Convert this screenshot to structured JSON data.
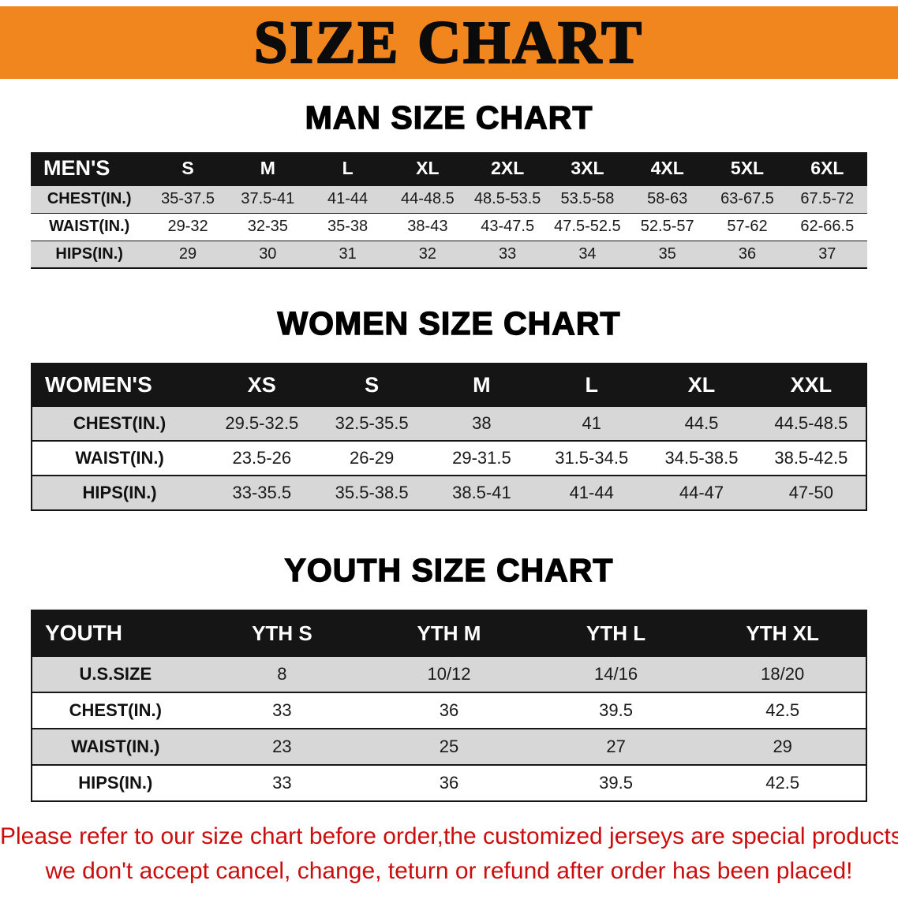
{
  "banner": {
    "title": "SIZE CHART"
  },
  "sections": [
    {
      "heading": "MAN SIZE CHART",
      "table": {
        "name": "men-size-table",
        "header": [
          "MEN'S",
          "S",
          "M",
          "L",
          "XL",
          "2XL",
          "3XL",
          "4XL",
          "5XL",
          "6XL"
        ],
        "rows": [
          [
            "CHEST(IN.)",
            "35-37.5",
            "37.5-41",
            "41-44",
            "44-48.5",
            "48.5-53.5",
            "53.5-58",
            "58-63",
            "63-67.5",
            "67.5-72"
          ],
          [
            "WAIST(IN.)",
            "29-32",
            "32-35",
            "35-38",
            "38-43",
            "43-47.5",
            "47.5-52.5",
            "52.5-57",
            "57-62",
            "62-66.5"
          ],
          [
            "HIPS(IN.)",
            "29",
            "30",
            "31",
            "32",
            "33",
            "34",
            "35",
            "36",
            "37"
          ]
        ]
      }
    },
    {
      "heading": "WOMEN SIZE CHART",
      "table": {
        "name": "women-size-table",
        "header": [
          "WOMEN'S",
          "XS",
          "S",
          "M",
          "L",
          "XL",
          "XXL"
        ],
        "rows": [
          [
            "CHEST(IN.)",
            "29.5-32.5",
            "32.5-35.5",
            "38",
            "41",
            "44.5",
            "44.5-48.5"
          ],
          [
            "WAIST(IN.)",
            "23.5-26",
            "26-29",
            "29-31.5",
            "31.5-34.5",
            "34.5-38.5",
            "38.5-42.5"
          ],
          [
            "HIPS(IN.)",
            "33-35.5",
            "35.5-38.5",
            "38.5-41",
            "41-44",
            "44-47",
            "47-50"
          ]
        ]
      }
    },
    {
      "heading": "YOUTH SIZE CHART",
      "table": {
        "name": "youth-size-table",
        "header": [
          "YOUTH",
          "YTH S",
          "YTH M",
          "YTH L",
          "YTH XL"
        ],
        "rows": [
          [
            "U.S.SIZE",
            "8",
            "10/12",
            "14/16",
            "18/20"
          ],
          [
            "CHEST(IN.)",
            "33",
            "36",
            "39.5",
            "42.5"
          ],
          [
            "WAIST(IN.)",
            "23",
            "25",
            "27",
            "29"
          ],
          [
            "HIPS(IN.)",
            "33",
            "36",
            "39.5",
            "42.5"
          ]
        ]
      }
    }
  ],
  "footer": {
    "line1": "Please refer to our size chart before order,the customized jerseys are special products,",
    "line2": "we don't accept cancel, change, teturn or refund after order has been placed!"
  },
  "colors": {
    "banner_orange": "#f1861f",
    "table_header_bg": "#151515",
    "table_header_text": "#ffffff",
    "row_shaded": "#d7d7d7",
    "row_plain": "#ffffff",
    "disclaimer_red": "#cc0d0d"
  }
}
